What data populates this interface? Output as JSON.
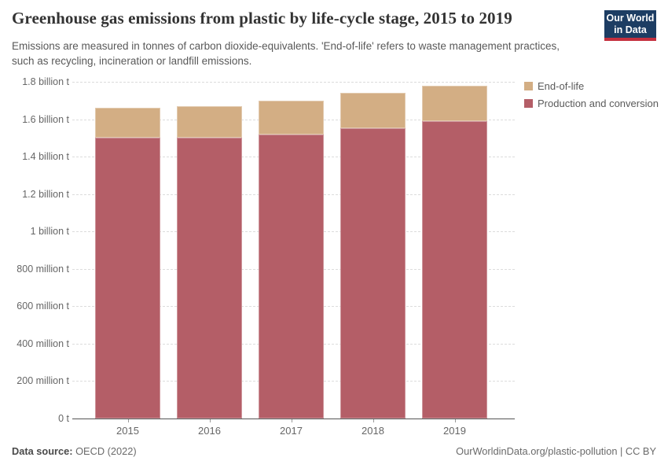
{
  "header": {
    "title": "Greenhouse gas emissions from plastic by life-cycle stage, 2015 to 2019",
    "subtitle": "Emissions are measured in tonnes of carbon dioxide-equivalents. 'End-of-life' refers to waste management practices, such as recycling, incineration or landfill emissions.",
    "logo": {
      "line1": "Our World",
      "line2": "in Data"
    }
  },
  "colors": {
    "end_of_life": "#d3ae84",
    "production": "#b45e67",
    "logo_navy": "#1d3d63",
    "logo_red": "#c5303e",
    "gridline": "#dcdcdc",
    "axis_line": "#555555"
  },
  "legend": {
    "items": [
      {
        "label": "End-of-life",
        "color": "#d3ae84"
      },
      {
        "label": "Production and conversion",
        "color": "#b45e67"
      }
    ]
  },
  "chart_data": {
    "type": "bar",
    "stacked": true,
    "title": "Greenhouse gas emissions from plastic by life-cycle stage, 2015 to 2019",
    "categories": [
      "2015",
      "2016",
      "2017",
      "2018",
      "2019"
    ],
    "series": [
      {
        "name": "Production and conversion",
        "color": "#b45e67",
        "values": [
          1.5,
          1.5,
          1.52,
          1.55,
          1.59
        ]
      },
      {
        "name": "End-of-life",
        "color": "#d3ae84",
        "values": [
          0.16,
          0.17,
          0.18,
          0.19,
          0.19
        ]
      }
    ],
    "totals": [
      1.66,
      1.67,
      1.7,
      1.74,
      1.78
    ],
    "value_unit_billion_tonnes": true,
    "ylim": [
      0,
      1.8
    ],
    "yticks": [
      {
        "value": 0.0,
        "label": "0 t"
      },
      {
        "value": 0.2,
        "label": "200 million t"
      },
      {
        "value": 0.4,
        "label": "400 million t"
      },
      {
        "value": 0.6,
        "label": "600 million t"
      },
      {
        "value": 0.8,
        "label": "800 million t"
      },
      {
        "value": 1.0,
        "label": "1 billion t"
      },
      {
        "value": 1.2,
        "label": "1.2 billion t"
      },
      {
        "value": 1.4,
        "label": "1.4 billion t"
      },
      {
        "value": 1.6,
        "label": "1.6 billion t"
      },
      {
        "value": 1.8,
        "label": "1.8 billion t"
      }
    ],
    "grid": "horizontal-dashed",
    "legend_position": "top-right"
  },
  "footer": {
    "source_label": "Data source:",
    "source_value": "OECD (2022)",
    "link_text": "OurWorldinData.org/plastic-pollution | CC BY"
  }
}
